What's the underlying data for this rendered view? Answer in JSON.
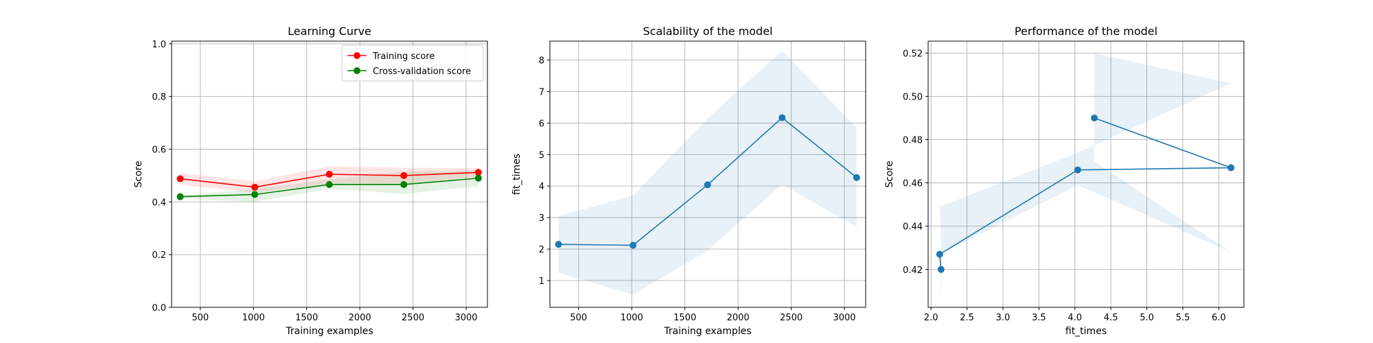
{
  "chart_data": [
    {
      "type": "line",
      "title": "Learning Curve",
      "xlabel": "Training examples",
      "ylabel": "Score",
      "xlim": [
        230,
        3200
      ],
      "ylim": [
        0.0,
        1.01
      ],
      "xticks": [
        500,
        1000,
        1500,
        2000,
        2500,
        3000
      ],
      "xtick_labels": [
        "500",
        "1000",
        "1500",
        "2000",
        "2500",
        "3000"
      ],
      "yticks": [
        0.0,
        0.2,
        0.4,
        0.6,
        0.8,
        1.0
      ],
      "ytick_labels": [
        "0.0",
        "0.2",
        "0.4",
        "0.6",
        "0.8",
        "1.0"
      ],
      "grid": true,
      "legend_position": "top-right",
      "series": [
        {
          "name": "Training score",
          "color": "#ff0000",
          "x": [
            311,
            1012,
            1713,
            2414,
            3115
          ],
          "y": [
            0.488,
            0.456,
            0.505,
            0.5,
            0.512
          ],
          "band_lower": [
            0.465,
            0.435,
            0.47,
            0.47,
            0.495
          ],
          "band_upper": [
            0.51,
            0.478,
            0.535,
            0.53,
            0.528
          ]
        },
        {
          "name": "Cross-validation score",
          "color": "#008000",
          "x": [
            311,
            1012,
            1713,
            2414,
            3115
          ],
          "y": [
            0.42,
            0.428,
            0.466,
            0.466,
            0.49
          ],
          "band_lower": [
            0.414,
            0.4,
            0.45,
            0.43,
            0.46
          ],
          "band_upper": [
            0.425,
            0.448,
            0.485,
            0.515,
            0.52
          ]
        }
      ]
    },
    {
      "type": "line",
      "title": "Scalability of the model",
      "xlabel": "Training examples",
      "ylabel": "fit_times",
      "xlim": [
        230,
        3200
      ],
      "ylim": [
        0.15,
        8.6
      ],
      "xticks": [
        500,
        1000,
        1500,
        2000,
        2500,
        3000
      ],
      "xtick_labels": [
        "500",
        "1000",
        "1500",
        "2000",
        "2500",
        "3000"
      ],
      "yticks": [
        1,
        2,
        3,
        4,
        5,
        6,
        7,
        8
      ],
      "ytick_labels": [
        "1",
        "2",
        "3",
        "4",
        "5",
        "6",
        "7",
        "8"
      ],
      "grid": true,
      "series": [
        {
          "color": "#1f77b4",
          "x": [
            311,
            1012,
            1713,
            2414,
            3115
          ],
          "y": [
            2.15,
            2.12,
            4.04,
            6.17,
            4.27
          ],
          "band_lower": [
            1.25,
            0.55,
            1.95,
            4.05,
            2.7
          ],
          "band_upper": [
            3.05,
            3.7,
            6.15,
            8.3,
            5.85
          ]
        }
      ]
    },
    {
      "type": "line",
      "title": "Performance of the model",
      "xlabel": "fit_times",
      "ylabel": "Score",
      "xlim": [
        1.96,
        6.35
      ],
      "ylim": [
        0.4025,
        0.5255
      ],
      "xticks": [
        2.0,
        2.5,
        3.0,
        3.5,
        4.0,
        4.5,
        5.0,
        5.5,
        6.0
      ],
      "xtick_labels": [
        "2.0",
        "2.5",
        "3.0",
        "3.5",
        "4.0",
        "4.5",
        "5.0",
        "5.5",
        "6.0"
      ],
      "yticks": [
        0.42,
        0.44,
        0.46,
        0.48,
        0.5,
        0.52
      ],
      "ytick_labels": [
        "0.42",
        "0.44",
        "0.46",
        "0.48",
        "0.50",
        "0.52"
      ],
      "grid": true,
      "series": [
        {
          "color": "#1f77b4",
          "x": [
            2.14,
            2.12,
            4.04,
            6.17,
            4.27
          ],
          "y": [
            0.42,
            0.427,
            0.466,
            0.467,
            0.49
          ],
          "band_lower": [
            0.405,
            0.427,
            0.459,
            0.428,
            0.47
          ],
          "band_upper": [
            0.432,
            0.449,
            0.474,
            0.506,
            0.52
          ]
        }
      ]
    }
  ]
}
